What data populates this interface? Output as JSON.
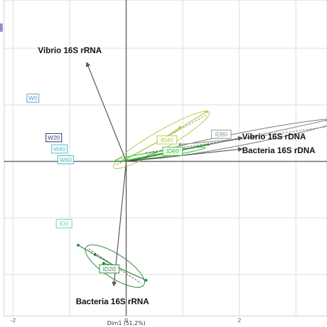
{
  "chart_data": {
    "type": "scatter",
    "title": "",
    "xlabel": "Dim1 (51,2%)",
    "ylabel": "",
    "xlim": [
      -2.3,
      3.5
    ],
    "ylim": [
      -2.25,
      2.85
    ],
    "x_ticks": [
      -2,
      0,
      2
    ],
    "x_tick_labels": [
      "-2",
      "0",
      "2"
    ],
    "grid": true,
    "variables": [
      {
        "name": "Vibrio 16S rRNA",
        "x": -0.7,
        "y": 1.75
      },
      {
        "name": "Vibrio 16S rDNA",
        "x": 2.05,
        "y": 0.42
      },
      {
        "name": "Bacteria 16S rDNA",
        "x": 2.05,
        "y": 0.22
      },
      {
        "name": "Bacteria 16S rRNA",
        "x": -0.22,
        "y": -2.2
      }
    ],
    "groups": [
      {
        "name": "W0",
        "x": -1.65,
        "y": 1.12,
        "color": "#5fa0c8"
      },
      {
        "name": "W20",
        "x": -1.28,
        "y": 0.42,
        "color": "#2f3a6e"
      },
      {
        "name": "W40",
        "x": -1.18,
        "y": 0.22,
        "color": "#49b6c8"
      },
      {
        "name": "W60",
        "x": -1.07,
        "y": 0.03,
        "color": "#49b6c8"
      },
      {
        "name": "ID0",
        "x": -1.1,
        "y": -1.1,
        "color": "#7fd0a8"
      },
      {
        "name": "ID20",
        "x": -0.3,
        "y": -1.9,
        "color": "#2e8b3c"
      },
      {
        "name": "ID40",
        "x": 0.72,
        "y": 0.38,
        "color": "#b7c94a"
      },
      {
        "name": "ID60",
        "x": 0.82,
        "y": 0.18,
        "color": "#3ccf3c"
      },
      {
        "name": "ID80",
        "x": 1.68,
        "y": 0.48,
        "color": "#8c9a8c"
      }
    ],
    "colors": {
      "ID20": "#2e8b3c",
      "ID40": "#b7c94a",
      "ID60": "#3ccf3c",
      "ID80": "#8c9a8c",
      "arrow": "#555555",
      "axis": "#222222",
      "grid": "#dddddd"
    }
  }
}
